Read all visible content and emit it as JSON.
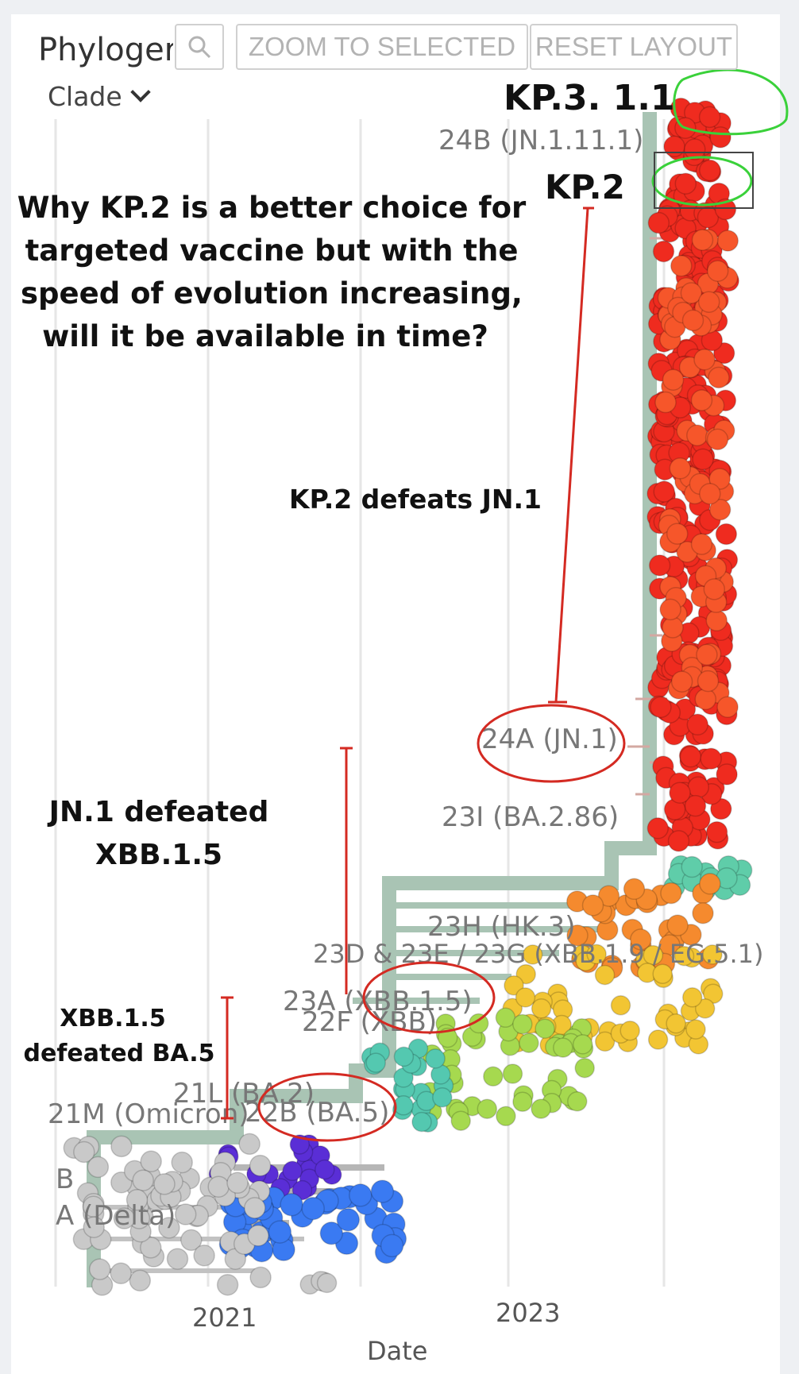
{
  "toolbar": {
    "title": "Phyloger",
    "zoom_to_selected": "ZOOM TO SELECTED",
    "reset_layout": "RESET LAYOUT",
    "color_by": "Clade"
  },
  "icons": [
    "search-icon",
    "chevron-down-icon"
  ],
  "chart_data": {
    "type": "scatter",
    "xlabel": "Date",
    "x_ticks": [
      "2021",
      "2023"
    ],
    "clade_labels": [
      "24B (JN.1.11.1)",
      "24A (JN.1)",
      "23I (BA.2.86)",
      "23H (HK.3)",
      "23D & 23E / 23G (XBB.1.9 / EG.5.1)",
      "23A (XBB.1.5)",
      "22F (XBB)",
      "21L (BA.2)",
      "22B (BA.5)",
      "21M (Omicron)",
      "B",
      "A (Delta)"
    ],
    "series": [
      {
        "color": "#ef2b1f"
      },
      {
        "color": "#f6562a"
      },
      {
        "color": "#5fcda9"
      },
      {
        "color": "#f58a2e"
      },
      {
        "color": "#f2c533"
      },
      {
        "color": "#a6d94f"
      },
      {
        "color": "#54c8b0"
      },
      {
        "color": "#5a2ed6"
      },
      {
        "color": "#3a7af2"
      },
      {
        "color": "#c9c9c9"
      }
    ]
  },
  "annotations": {
    "headline": [
      "Why KP.2 is a better choice for",
      "targeted vaccine but with the",
      "speed of evolution increasing,",
      "will it be available in time?"
    ],
    "kp311": "KP.3. 1.1",
    "kp2": "KP.2",
    "kp2_defeats": "KP.2 defeats JN.1",
    "jn1_defeated": [
      "JN.1 defeated",
      "XBB.1.5"
    ],
    "xbb_defeated": [
      "XBB.1.5",
      "defeated BA.5"
    ]
  },
  "colors": {
    "annotation_red": "#d42a22",
    "annotation_green": "#3ad13a",
    "branch": "#a9c4b4"
  }
}
